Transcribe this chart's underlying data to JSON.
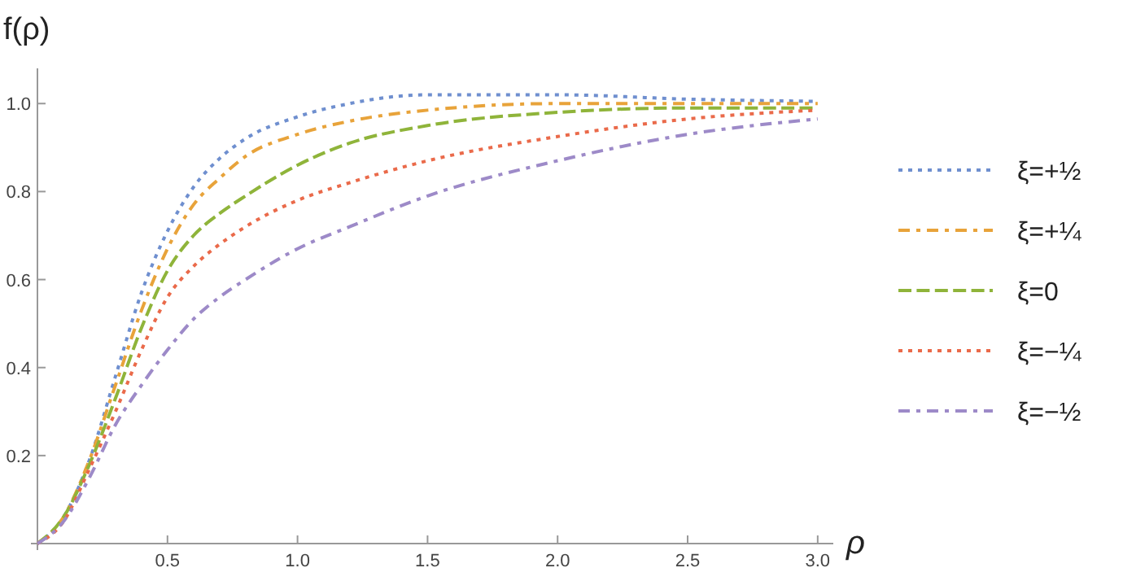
{
  "chart_data": {
    "type": "line",
    "xlabel": "ρ",
    "ylabel": "f(ρ)",
    "x": [
      0,
      0.1,
      0.2,
      0.3,
      0.4,
      0.5,
      0.6,
      0.7,
      0.8,
      1.0,
      1.2,
      1.5,
      2.0,
      2.5,
      3.0
    ],
    "series": [
      {
        "name": "ξ=+½",
        "color": "#6f8fcf",
        "line_style": "dotted",
        "values": [
          0,
          0.06,
          0.19,
          0.38,
          0.57,
          0.71,
          0.81,
          0.875,
          0.92,
          0.97,
          1.0,
          1.02,
          1.02,
          1.01,
          1.005
        ]
      },
      {
        "name": "ξ=+¼",
        "color": "#e8a33a",
        "line_style": "dashdot",
        "values": [
          0,
          0.06,
          0.19,
          0.36,
          0.53,
          0.67,
          0.77,
          0.83,
          0.88,
          0.93,
          0.96,
          0.985,
          1.0,
          1.0,
          1.0
        ]
      },
      {
        "name": "ξ=0",
        "color": "#8fb43a",
        "line_style": "dashed",
        "values": [
          0,
          0.06,
          0.18,
          0.33,
          0.49,
          0.62,
          0.7,
          0.75,
          0.79,
          0.86,
          0.91,
          0.95,
          0.98,
          0.99,
          0.99
        ]
      },
      {
        "name": "ξ=−¼",
        "color": "#ea6a4a",
        "line_style": "dotted",
        "values": [
          0,
          0.05,
          0.17,
          0.3,
          0.44,
          0.56,
          0.63,
          0.68,
          0.72,
          0.78,
          0.82,
          0.87,
          0.925,
          0.965,
          0.985
        ]
      },
      {
        "name": "ξ=−½",
        "color": "#9d8ac8",
        "line_style": "dashdot",
        "values": [
          0,
          0.05,
          0.15,
          0.27,
          0.36,
          0.44,
          0.51,
          0.56,
          0.6,
          0.67,
          0.72,
          0.79,
          0.87,
          0.93,
          0.965
        ]
      }
    ],
    "xlim": [
      0,
      3.06
    ],
    "xticks": [
      {
        "value": 0,
        "label": null
      },
      0.5,
      {
        "value": 1,
        "label": "1.0"
      },
      1.5,
      {
        "value": 2,
        "label": "2.0"
      },
      2.5,
      {
        "value": 3,
        "label": "3.0"
      }
    ],
    "ylim": [
      0,
      1.08
    ],
    "yticks": [
      {
        "value": 0,
        "label": null
      },
      0.2,
      0.4,
      0.6,
      0.8,
      {
        "value": 1,
        "label": "1.0"
      }
    ],
    "grid": false,
    "legend": "right",
    "marker": "none"
  }
}
